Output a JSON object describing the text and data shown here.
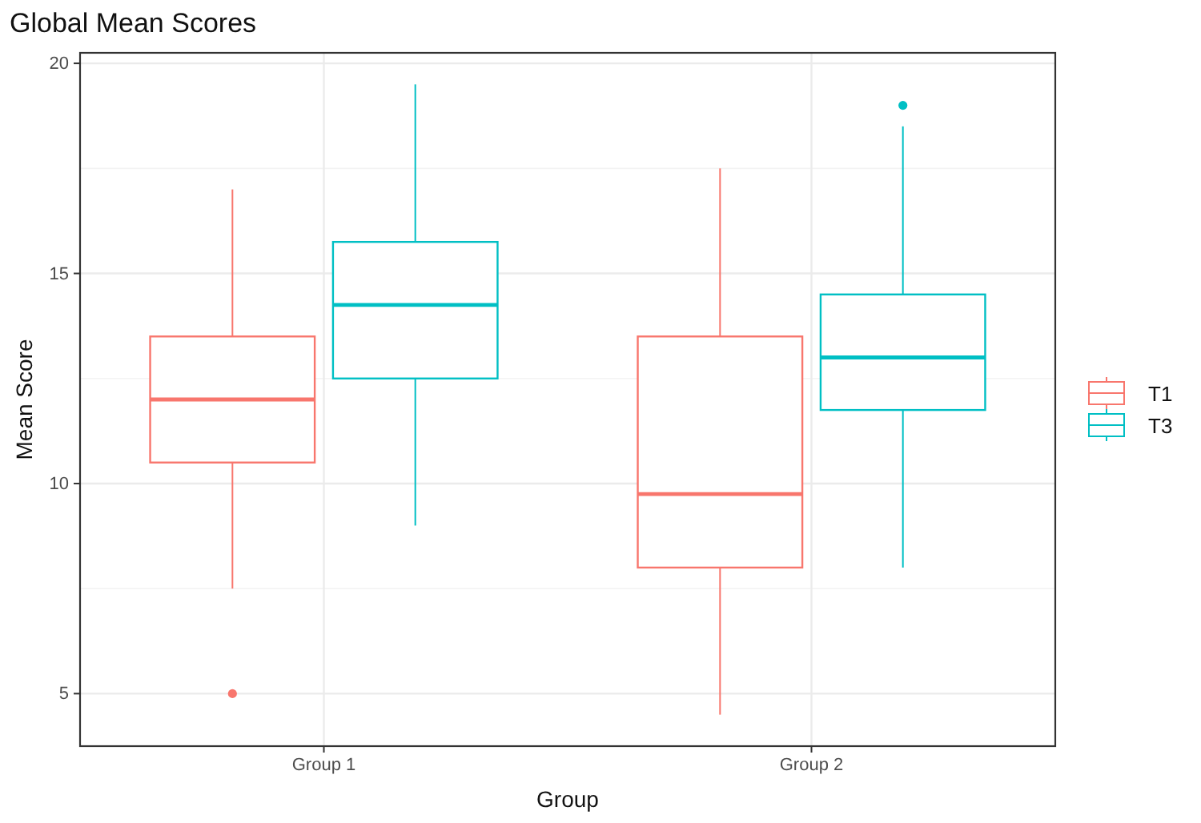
{
  "chart_data": {
    "type": "box",
    "title": "Global Mean Scores",
    "xlabel": "Group",
    "ylabel": "Mean Score",
    "categories": [
      "Group 1",
      "Group 2"
    ],
    "series": [
      {
        "name": "T1",
        "color": "#f8766d",
        "boxes": [
          {
            "low": 7.5,
            "q1": 10.5,
            "median": 12,
            "q3": 13.5,
            "high": 17,
            "outliers": [
              5
            ]
          },
          {
            "low": 4.5,
            "q1": 8,
            "median": 9.75,
            "q3": 13.5,
            "high": 17.5
          }
        ]
      },
      {
        "name": "T3",
        "color": "#00bfc4",
        "boxes": [
          {
            "low": 9,
            "q1": 12.5,
            "median": 14.25,
            "q3": 15.75,
            "high": 19.5
          },
          {
            "low": 8,
            "q1": 11.75,
            "median": 13,
            "q3": 14.5,
            "high": 18.5,
            "outliers": [
              19
            ]
          }
        ]
      }
    ],
    "ylim": [
      3.75,
      20.25
    ],
    "yticks": [
      5,
      10,
      15,
      20
    ],
    "grid": true,
    "legend": "right"
  }
}
